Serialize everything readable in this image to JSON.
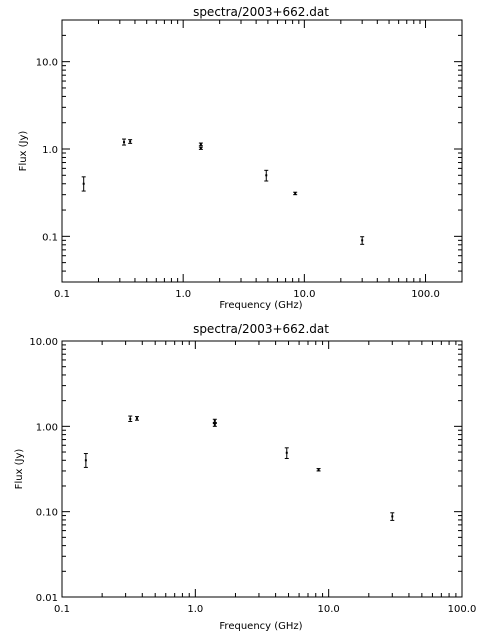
{
  "chart_data": [
    {
      "type": "scatter",
      "title": "spectra/2003+662.dat",
      "xlabel": "Frequency (GHz)",
      "ylabel": "Flux (Jy)",
      "xscale": "log",
      "yscale": "log",
      "xlim": [
        0.1,
        200
      ],
      "ylim": [
        0.03,
        30
      ],
      "xticks": [
        0.1,
        1.0,
        10.0,
        100.0
      ],
      "xtick_labels": [
        "0.1",
        "1.0",
        "10.0",
        "100.0"
      ],
      "yticks": [
        0.1,
        1.0,
        10.0
      ],
      "ytick_labels": [
        "0.1",
        "1.0",
        "10.0"
      ],
      "grid": false,
      "points": [
        {
          "x": 0.151,
          "y": 0.4,
          "yerr": [
            0.33,
            0.48
          ]
        },
        {
          "x": 0.325,
          "y": 1.2,
          "yerr": [
            1.11,
            1.3
          ]
        },
        {
          "x": 0.365,
          "y": 1.22,
          "yerr": [
            1.16,
            1.28
          ]
        },
        {
          "x": 1.4,
          "y": 1.13,
          "yerr": [
            1.09,
            1.17
          ]
        },
        {
          "x": 1.4,
          "y": 1.02,
          "yerr": [
            0.99,
            1.05
          ]
        },
        {
          "x": 4.85,
          "y": 0.5,
          "yerr": [
            0.43,
            0.57
          ]
        },
        {
          "x": 8.4,
          "y": 0.31,
          "yerr": [
            0.3,
            0.32
          ]
        },
        {
          "x": 30,
          "y": 0.09,
          "yerr": [
            0.081,
            0.099
          ]
        }
      ]
    },
    {
      "type": "scatter",
      "title": "spectra/2003+662.dat",
      "xlabel": "Frequency (GHz)",
      "ylabel": "Flux (Jy)",
      "xscale": "log",
      "yscale": "log",
      "xlim": [
        0.1,
        100
      ],
      "ylim": [
        0.01,
        10
      ],
      "xticks": [
        0.1,
        1.0,
        10.0,
        100.0
      ],
      "xtick_labels": [
        "0.1",
        "1.0",
        "10.0",
        "100.0"
      ],
      "yticks": [
        0.01,
        0.1,
        1.0,
        10.0
      ],
      "ytick_labels": [
        "0.01",
        "0.10",
        "1.00",
        "10.00"
      ],
      "grid": false,
      "points": [
        {
          "x": 0.151,
          "y": 0.4,
          "yerr": [
            0.33,
            0.48
          ]
        },
        {
          "x": 0.325,
          "y": 1.22,
          "yerr": [
            1.14,
            1.32
          ]
        },
        {
          "x": 0.365,
          "y": 1.24,
          "yerr": [
            1.18,
            1.3
          ]
        },
        {
          "x": 1.4,
          "y": 1.16,
          "yerr": [
            1.11,
            1.21
          ]
        },
        {
          "x": 1.4,
          "y": 1.04,
          "yerr": [
            1.0,
            1.08
          ]
        },
        {
          "x": 4.85,
          "y": 0.49,
          "yerr": [
            0.42,
            0.56
          ]
        },
        {
          "x": 8.4,
          "y": 0.31,
          "yerr": [
            0.3,
            0.32
          ]
        },
        {
          "x": 30,
          "y": 0.088,
          "yerr": [
            0.079,
            0.097
          ]
        }
      ]
    }
  ]
}
